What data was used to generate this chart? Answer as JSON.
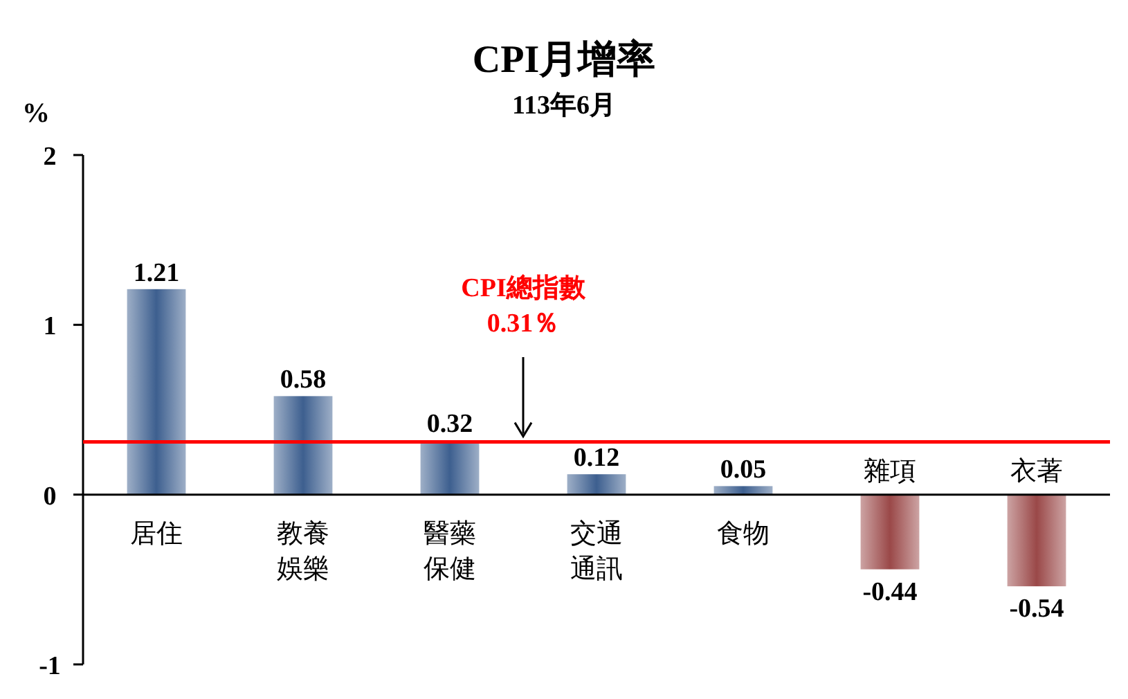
{
  "chart_data": {
    "type": "bar",
    "title": "CPI月增率",
    "subtitle": "113年6月",
    "ylabel": "%",
    "categories": [
      "居住",
      "教養娛樂",
      "醫藥保健",
      "交通通訊",
      "食物",
      "雜項",
      "衣著"
    ],
    "values": [
      1.21,
      0.58,
      0.32,
      0.12,
      0.05,
      -0.44,
      -0.54
    ],
    "colors": [
      "#3d5f8f",
      "#3d5f8f",
      "#3d5f8f",
      "#3d5f8f",
      "#3d5f8f",
      "#9a4848",
      "#9a4848"
    ],
    "ylim": [
      -1,
      2
    ],
    "yticks": [
      -1,
      0,
      1,
      2
    ],
    "data_labels": true,
    "grid": false,
    "ref_lines": [
      {
        "axis": "y",
        "value": 0.31,
        "label": "CPI總指數\n0.31％",
        "color": "#ff0000"
      }
    ]
  }
}
